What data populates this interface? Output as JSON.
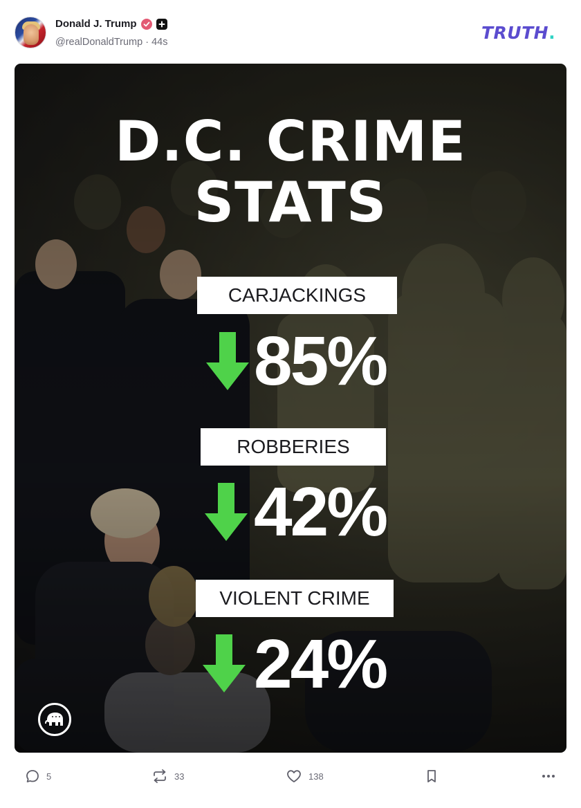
{
  "author": {
    "name": "Donald J. Trump",
    "handle": "@realDonaldTrump",
    "separator": "·",
    "age": "44s"
  },
  "brand": {
    "wordmark": "TRUTH",
    "dot": "."
  },
  "post_image": {
    "title_line_1": "D.C. CRIME",
    "title_line_2": "STATS",
    "stats": [
      {
        "label": "CARJACKINGS",
        "value": "85%",
        "direction": "down"
      },
      {
        "label": "ROBBERIES",
        "value": "42%",
        "direction": "down"
      },
      {
        "label": "VIOLENT CRIME",
        "value": "24%",
        "direction": "down"
      }
    ],
    "arrow_color": "#4fd24a"
  },
  "actions": {
    "replies": "5",
    "retruths": "33",
    "likes": "138"
  },
  "colors": {
    "brand": "#5b4ccf",
    "brand_dot": "#2fd3c4",
    "verified": "#e35a74",
    "muted_text": "#6b6b76"
  },
  "icons": [
    "verified-icon",
    "plus-badge-icon",
    "reply-icon",
    "retruth-icon",
    "like-icon",
    "bookmark-icon",
    "more-icon",
    "gop-elephant-icon"
  ]
}
